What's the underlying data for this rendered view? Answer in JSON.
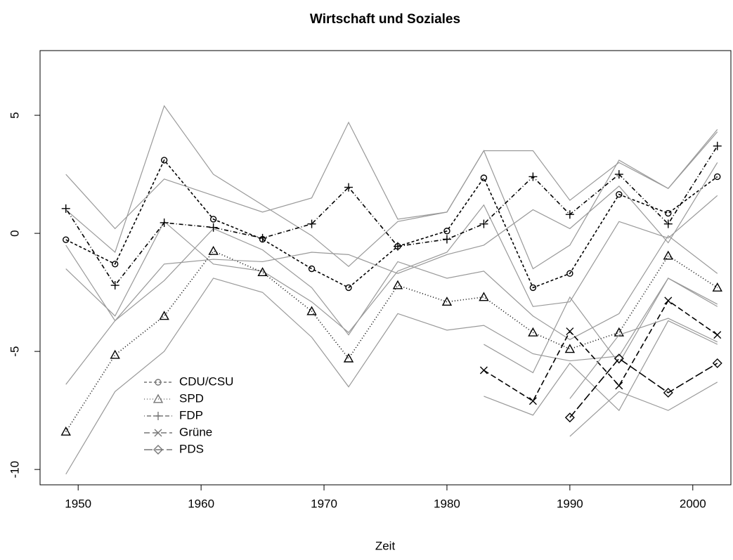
{
  "chart_data": {
    "type": "line",
    "title": "Wirtschaft und Soziales",
    "x_label": "Zeit",
    "x": [
      1949,
      1953,
      1957,
      1961,
      1965,
      1969,
      1972,
      1976,
      1980,
      1983,
      1987,
      1990,
      1994,
      1998,
      2002
    ],
    "xlim": [
      1946.9,
      2003.1
    ],
    "xticks": [
      1950,
      1960,
      1970,
      1980,
      1990,
      2000
    ],
    "ylim": [
      -10.65,
      7.74
    ],
    "yticks": [
      -10,
      -5,
      0,
      5
    ],
    "legend": "bottom-left",
    "series": [
      {
        "name": "CDU/CSU",
        "marker": "circle",
        "dash": "4,3",
        "color": "#000000",
        "values": [
          -0.27,
          -1.3,
          3.1,
          0.6,
          -0.25,
          -1.5,
          -2.3,
          -0.55,
          0.1,
          2.35,
          -2.3,
          -1.7,
          1.65,
          0.85,
          2.4
        ],
        "upper": [
          1.0,
          -0.8,
          5.4,
          2.5,
          1.2,
          -0.1,
          -1.4,
          0.5,
          0.9,
          3.5,
          -1.5,
          -0.5,
          3.1,
          1.9,
          4.3
        ],
        "lower": [
          -1.5,
          -3.5,
          0.5,
          -1.3,
          -1.6,
          -2.9,
          -4.2,
          -1.6,
          -0.8,
          1.2,
          -3.1,
          -2.9,
          0.5,
          -0.2,
          1.6
        ]
      },
      {
        "name": "SPD",
        "marker": "triangle",
        "dash": "1,3",
        "color": "#000000",
        "values": [
          -8.4,
          -5.15,
          -3.5,
          -0.75,
          -1.65,
          -3.3,
          -5.3,
          -2.2,
          -2.9,
          -2.7,
          -4.2,
          -4.9,
          -4.2,
          -0.95,
          -2.3
        ],
        "upper": [
          -6.4,
          -3.7,
          -2.0,
          0.2,
          -0.7,
          -2.3,
          -4.3,
          -1.2,
          -1.9,
          -1.6,
          -3.5,
          -4.5,
          -3.4,
          -0.1,
          -1.7
        ],
        "lower": [
          -10.2,
          -6.7,
          -5.0,
          -1.9,
          -2.5,
          -4.4,
          -6.5,
          -3.4,
          -4.1,
          -3.9,
          -5.1,
          -5.4,
          -5.2,
          -1.9,
          -3.0
        ]
      },
      {
        "name": "FDP",
        "marker": "plus",
        "dash": "1,3,6,3",
        "color": "#000000",
        "values": [
          1.05,
          -2.2,
          0.45,
          0.25,
          -0.2,
          0.4,
          1.95,
          -0.55,
          -0.25,
          0.4,
          2.4,
          0.8,
          2.5,
          0.4,
          3.7
        ],
        "upper": [
          2.5,
          0.2,
          2.3,
          1.6,
          0.9,
          1.5,
          4.7,
          0.6,
          0.9,
          3.5,
          3.5,
          1.4,
          3.0,
          1.9,
          4.4
        ],
        "lower": [
          -0.5,
          -3.7,
          -1.3,
          -1.1,
          -1.2,
          -0.8,
          -0.9,
          -1.7,
          -0.9,
          -0.5,
          1.0,
          0.2,
          2.0,
          -0.4,
          3.0
        ]
      },
      {
        "name": "Grüne",
        "marker": "cross",
        "dash": "8,4",
        "color": "#000000",
        "values": [
          null,
          null,
          null,
          null,
          null,
          null,
          null,
          null,
          null,
          -5.8,
          -7.1,
          -4.15,
          -6.45,
          -2.85,
          -4.3
        ],
        "upper": [
          null,
          null,
          null,
          null,
          null,
          null,
          null,
          null,
          null,
          -4.7,
          -5.9,
          -2.7,
          -5.5,
          -1.9,
          -3.1
        ],
        "lower": [
          null,
          null,
          null,
          null,
          null,
          null,
          null,
          null,
          null,
          -6.9,
          -7.7,
          -5.5,
          -7.5,
          -3.7,
          -4.7
        ]
      },
      {
        "name": "PDS",
        "marker": "diamond",
        "dash": "12,4",
        "color": "#000000",
        "values": [
          null,
          null,
          null,
          null,
          null,
          null,
          null,
          null,
          null,
          null,
          null,
          -7.8,
          -5.3,
          -6.75,
          -5.5
        ],
        "upper": [
          null,
          null,
          null,
          null,
          null,
          null,
          null,
          null,
          null,
          null,
          null,
          -7.0,
          -4.3,
          -3.6,
          -4.6
        ],
        "lower": [
          null,
          null,
          null,
          null,
          null,
          null,
          null,
          null,
          null,
          null,
          null,
          -8.6,
          -6.7,
          -7.5,
          -6.3
        ]
      }
    ]
  }
}
